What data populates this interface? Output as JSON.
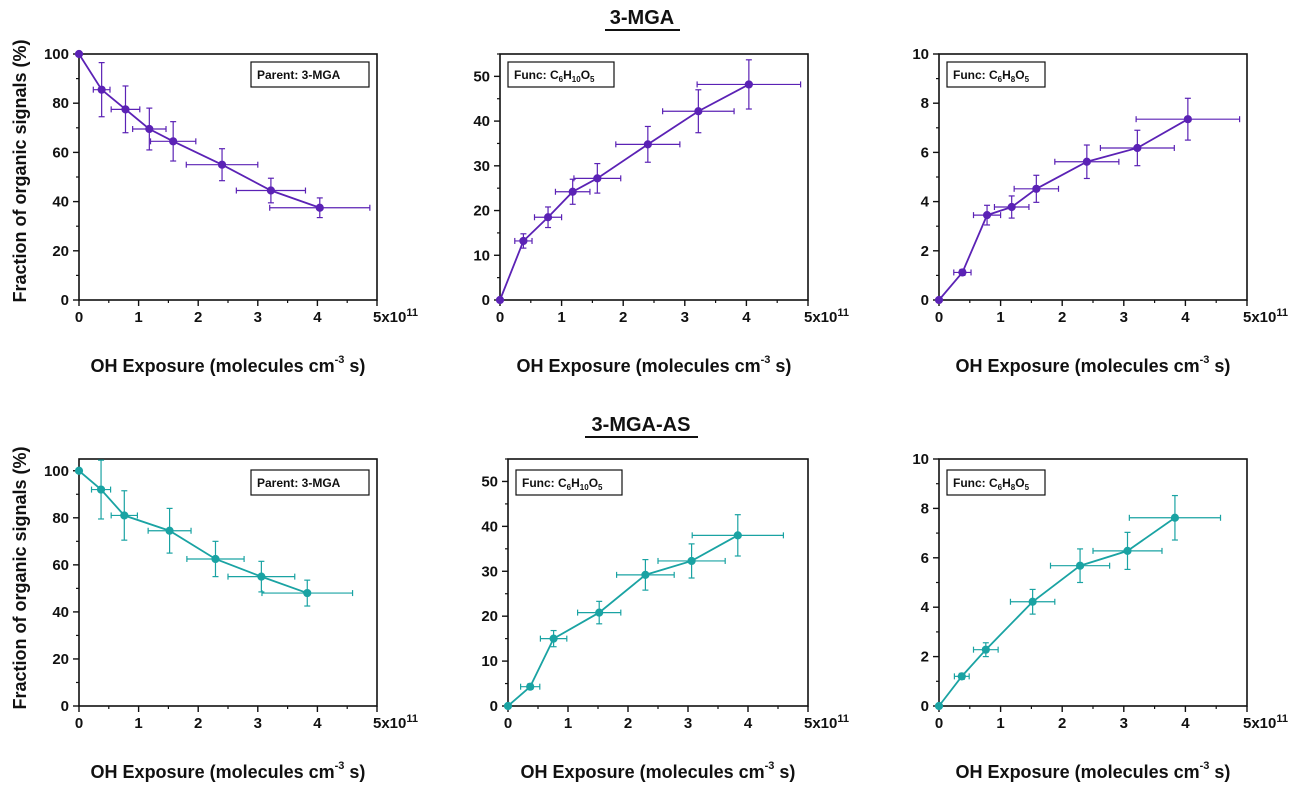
{
  "colors": {
    "purple": "#5b22b5",
    "teal": "#1aa3a3",
    "axis": "#111111",
    "background": "#ffffff"
  },
  "section_titles": [
    "3-MGA",
    "3-MGA-AS"
  ],
  "y_axis_label": "Fraction of organic signals (%)",
  "x_axis_label": {
    "main": "OH Exposure (molecules cm",
    "superscript": "-3",
    "tail": " s)"
  },
  "x_last_tick": {
    "main": "5x10",
    "superscript": "11"
  },
  "legends": {
    "parent": "Parent: 3-MGA",
    "func_c6h10o5": {
      "prefix": "Func: C",
      "parts": [
        {
          "base": "",
          "sub": "6"
        },
        {
          "base": "H",
          "sub": "10"
        },
        {
          "base": "O",
          "sub": "5"
        }
      ]
    },
    "func_c6h8o5": {
      "prefix": "Func: C",
      "parts": [
        {
          "base": "",
          "sub": "6"
        },
        {
          "base": "H",
          "sub": "8"
        },
        {
          "base": "O",
          "sub": "5"
        }
      ]
    }
  },
  "chart_data": [
    {
      "type": "scatter",
      "section": "3-MGA",
      "legend": "parent",
      "color": "purple",
      "x": [
        0,
        0.38,
        0.78,
        1.18,
        1.58,
        2.4,
        3.22,
        4.04
      ],
      "y": [
        100,
        85.5,
        77.5,
        69.5,
        64.5,
        55.0,
        44.5,
        37.5
      ],
      "xerr": [
        0,
        0.14,
        0.24,
        0.28,
        0.38,
        0.6,
        0.58,
        0.84
      ],
      "yerr": [
        0,
        11.0,
        9.5,
        8.5,
        8.0,
        6.5,
        5.0,
        4.0
      ],
      "xlim": [
        0,
        5
      ],
      "ylim": [
        0,
        100
      ],
      "xticks": [
        0,
        1,
        2,
        3,
        4,
        5
      ],
      "yticks": [
        0,
        20,
        40,
        60,
        80,
        100
      ]
    },
    {
      "type": "scatter",
      "section": "3-MGA",
      "legend": "func_c6h10o5",
      "color": "purple",
      "x": [
        0,
        0.38,
        0.78,
        1.18,
        1.58,
        2.4,
        3.22,
        4.04
      ],
      "y": [
        0,
        13.2,
        18.5,
        24.2,
        27.2,
        34.8,
        42.2,
        48.2
      ],
      "xerr": [
        0,
        0.14,
        0.22,
        0.28,
        0.38,
        0.52,
        0.58,
        0.84
      ],
      "yerr": [
        0,
        1.6,
        2.3,
        2.8,
        3.3,
        4.0,
        4.8,
        5.5
      ],
      "xlim": [
        0,
        5
      ],
      "ylim": [
        0,
        55
      ],
      "xticks": [
        0,
        1,
        2,
        3,
        4,
        5
      ],
      "yticks": [
        0,
        10,
        20,
        30,
        40,
        50
      ]
    },
    {
      "type": "scatter",
      "section": "3-MGA",
      "legend": "func_c6h8o5",
      "color": "purple",
      "x": [
        0,
        0.38,
        0.78,
        1.18,
        1.58,
        2.4,
        3.22,
        4.04
      ],
      "y": [
        0,
        1.12,
        3.45,
        3.78,
        4.52,
        5.62,
        6.18,
        7.35
      ],
      "xerr": [
        0,
        0.14,
        0.22,
        0.28,
        0.36,
        0.52,
        0.6,
        0.84
      ],
      "yerr": [
        0,
        0.12,
        0.4,
        0.45,
        0.55,
        0.68,
        0.72,
        0.85
      ],
      "xlim": [
        0,
        5
      ],
      "ylim": [
        0,
        10
      ],
      "xticks": [
        0,
        1,
        2,
        3,
        4,
        5
      ],
      "yticks": [
        0,
        2,
        4,
        6,
        8,
        10
      ]
    },
    {
      "type": "scatter",
      "section": "3-MGA-AS",
      "legend": "parent",
      "color": "teal",
      "x": [
        0,
        0.37,
        0.76,
        1.52,
        2.29,
        3.06,
        3.83
      ],
      "y": [
        100,
        92.0,
        81.0,
        74.5,
        62.5,
        55.0,
        48.0
      ],
      "xerr": [
        0,
        0.16,
        0.22,
        0.36,
        0.48,
        0.56,
        0.76
      ],
      "yerr": [
        0,
        12.5,
        10.5,
        9.5,
        7.5,
        6.5,
        5.5
      ],
      "xlim": [
        0,
        5
      ],
      "ylim": [
        0,
        105
      ],
      "xticks": [
        0,
        1,
        2,
        3,
        4,
        5
      ],
      "yticks": [
        0,
        20,
        40,
        60,
        80,
        100
      ]
    },
    {
      "type": "scatter",
      "section": "3-MGA-AS",
      "legend": "func_c6h10o5",
      "color": "teal",
      "x": [
        0,
        0.37,
        0.76,
        1.52,
        2.29,
        3.06,
        3.83
      ],
      "y": [
        0,
        4.3,
        15.0,
        20.8,
        29.2,
        32.3,
        38.0
      ],
      "xerr": [
        0,
        0.16,
        0.22,
        0.36,
        0.48,
        0.56,
        0.76
      ],
      "yerr": [
        0,
        0.6,
        1.8,
        2.5,
        3.4,
        3.8,
        4.6
      ],
      "xlim": [
        0,
        5
      ],
      "ylim": [
        0,
        55
      ],
      "xticks": [
        0,
        1,
        2,
        3,
        4,
        5
      ],
      "yticks": [
        0,
        10,
        20,
        30,
        40,
        50
      ]
    },
    {
      "type": "scatter",
      "section": "3-MGA-AS",
      "legend": "func_c6h8o5",
      "color": "teal",
      "x": [
        0,
        0.37,
        0.76,
        1.52,
        2.29,
        3.06,
        3.83
      ],
      "y": [
        0,
        1.2,
        2.28,
        4.22,
        5.68,
        6.28,
        7.62
      ],
      "xerr": [
        0,
        0.12,
        0.2,
        0.36,
        0.48,
        0.56,
        0.74
      ],
      "yerr": [
        0,
        0.12,
        0.28,
        0.5,
        0.68,
        0.75,
        0.9
      ],
      "xlim": [
        0,
        5
      ],
      "ylim": [
        0,
        10
      ],
      "xticks": [
        0,
        1,
        2,
        3,
        4,
        5
      ],
      "yticks": [
        0,
        2,
        4,
        6,
        8,
        10
      ]
    }
  ]
}
